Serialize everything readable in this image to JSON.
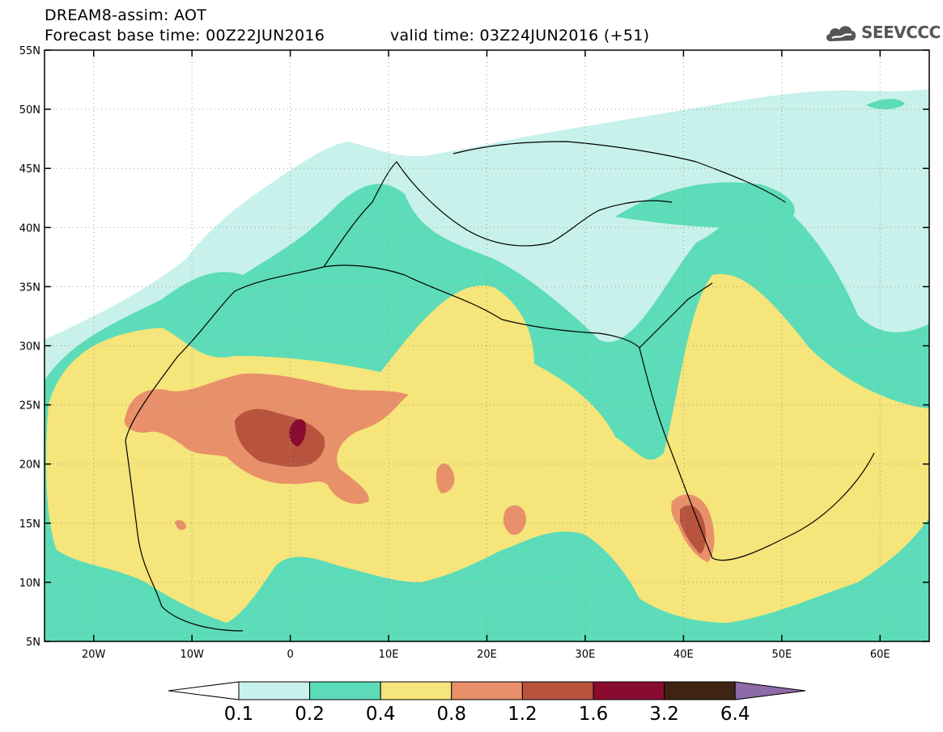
{
  "header": {
    "title": "DREAM8-assim: AOT",
    "base_time": "Forecast base time: 00Z22JUN2016",
    "valid_time": "valid time: 03Z24JUN2016 (+51)"
  },
  "logo": {
    "text": "SEEVCCC",
    "icon": "cloud-icon"
  },
  "map": {
    "projection": "cylindrical",
    "lon_range": [
      -25,
      65
    ],
    "lat_range": [
      5,
      55
    ],
    "lat_ticks": [
      "55N",
      "50N",
      "45N",
      "40N",
      "35N",
      "30N",
      "25N",
      "20N",
      "15N",
      "10N",
      "5N"
    ],
    "lon_ticks": [
      "20W",
      "10W",
      "0",
      "10E",
      "20E",
      "30E",
      "40E",
      "50E",
      "60E"
    ],
    "gridlines": "dotted"
  },
  "colorbar": {
    "labels": [
      "0.1",
      "0.2",
      "0.4",
      "0.8",
      "1.2",
      "1.6",
      "3.2",
      "6.4"
    ],
    "colors": [
      "#c8f1eb",
      "#5cdcb8",
      "#f5e57a",
      "#e8906a",
      "#b8543e",
      "#8a0b30",
      "#3f2414",
      "#8d6aa8"
    ],
    "below_color": "#ffffff"
  }
}
